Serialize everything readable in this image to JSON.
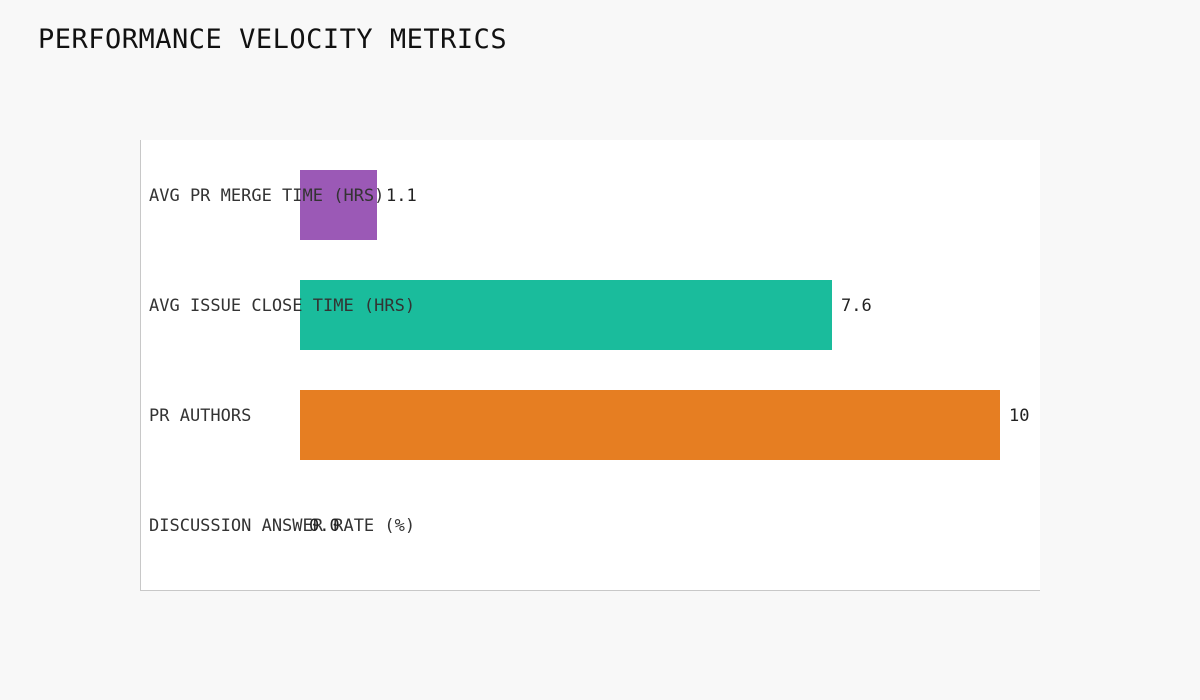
{
  "chart_data": {
    "type": "bar",
    "orientation": "horizontal",
    "title": "PERFORMANCE VELOCITY METRICS",
    "categories": [
      "AVG PR MERGE TIME (HRS)",
      "AVG ISSUE CLOSE TIME (HRS)",
      "PR AUTHORS",
      "DISCUSSION ANSWER RATE (%)"
    ],
    "values": [
      1.1,
      7.6,
      10,
      0
    ],
    "value_labels": [
      "1.1",
      "7.6",
      "10",
      "0.0"
    ],
    "colors": [
      "#9b59b6",
      "#1abc9c",
      "#e67e22",
      "#3498db"
    ],
    "xlim": [
      0,
      10
    ],
    "grid": false,
    "legend": "none"
  }
}
